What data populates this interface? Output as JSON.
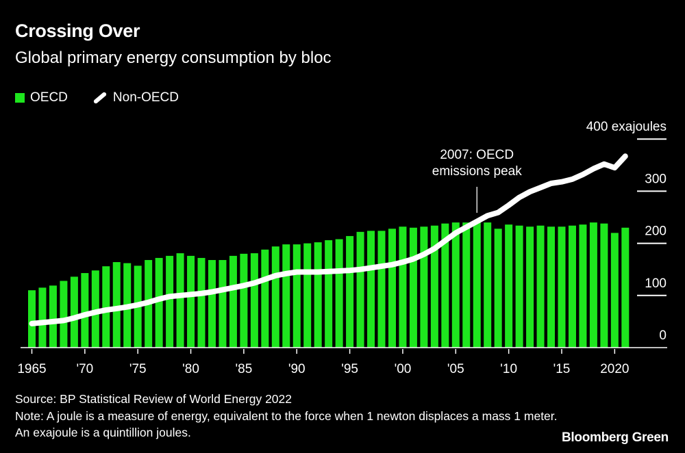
{
  "header": {
    "title": "Crossing Over",
    "subtitle": "Global primary energy consumption by bloc"
  },
  "legend": [
    {
      "label": "OECD",
      "type": "bar"
    },
    {
      "label": "Non-OECD",
      "type": "line"
    }
  ],
  "colors": {
    "oecd": "#1ee61e",
    "non_oecd": "#ffffff",
    "background": "#000000"
  },
  "chart_data": {
    "type": "bar",
    "title": "Crossing Over",
    "subtitle": "Global primary energy consumption by bloc",
    "unit_label": "400 exajoules",
    "x": [
      1965,
      1966,
      1967,
      1968,
      1969,
      1970,
      1971,
      1972,
      1973,
      1974,
      1975,
      1976,
      1977,
      1978,
      1979,
      1980,
      1981,
      1982,
      1983,
      1984,
      1985,
      1986,
      1987,
      1988,
      1989,
      1990,
      1991,
      1992,
      1993,
      1994,
      1995,
      1996,
      1997,
      1998,
      1999,
      2000,
      2001,
      2002,
      2003,
      2004,
      2005,
      2006,
      2007,
      2008,
      2009,
      2010,
      2011,
      2012,
      2013,
      2014,
      2015,
      2016,
      2017,
      2018,
      2019,
      2020,
      2021
    ],
    "x_tick_labels": [
      {
        "year": 1965,
        "label": "1965"
      },
      {
        "year": 1970,
        "label": "'70"
      },
      {
        "year": 1975,
        "label": "'75"
      },
      {
        "year": 1980,
        "label": "'80"
      },
      {
        "year": 1985,
        "label": "'85"
      },
      {
        "year": 1990,
        "label": "'90"
      },
      {
        "year": 1995,
        "label": "'95"
      },
      {
        "year": 2000,
        "label": "'00"
      },
      {
        "year": 2005,
        "label": "'05"
      },
      {
        "year": 2010,
        "label": "'10"
      },
      {
        "year": 2015,
        "label": "'15"
      },
      {
        "year": 2020,
        "label": "2020"
      }
    ],
    "y_ticks": [
      {
        "value": 0,
        "label": "0"
      },
      {
        "value": 100,
        "label": "100"
      },
      {
        "value": 200,
        "label": "200"
      },
      {
        "value": 300,
        "label": "300"
      },
      {
        "value": 400,
        "label": "400 exajoules"
      }
    ],
    "ylim": [
      0,
      400
    ],
    "y_axis_side": "right",
    "series": [
      {
        "name": "OECD",
        "type": "bar",
        "values": [
          110,
          115,
          119,
          128,
          136,
          143,
          148,
          156,
          164,
          162,
          157,
          168,
          172,
          176,
          181,
          176,
          172,
          168,
          168,
          176,
          180,
          181,
          188,
          194,
          198,
          198,
          200,
          202,
          206,
          208,
          214,
          222,
          224,
          224,
          228,
          232,
          230,
          232,
          234,
          238,
          240,
          240,
          241,
          240,
          228,
          236,
          234,
          232,
          234,
          232,
          232,
          234,
          236,
          240,
          238,
          220,
          230
        ]
      },
      {
        "name": "Non-OECD",
        "type": "line",
        "values": [
          46,
          48,
          50,
          52,
          57,
          63,
          68,
          72,
          75,
          78,
          82,
          87,
          93,
          98,
          100,
          102,
          104,
          107,
          111,
          115,
          119,
          124,
          131,
          138,
          142,
          145,
          145,
          145,
          146,
          147,
          148,
          150,
          153,
          156,
          159,
          164,
          170,
          179,
          190,
          205,
          220,
          231,
          242,
          253,
          259,
          273,
          288,
          299,
          307,
          315,
          318,
          323,
          332,
          343,
          352,
          345,
          367
        ]
      }
    ],
    "annotations": [
      {
        "year": 2007,
        "lines": [
          "2007: OECD",
          "emissions peak"
        ]
      }
    ]
  },
  "footer": {
    "source": "Source: BP Statistical Review of World Energy 2022",
    "note1": "Note: A joule is a measure of energy, equivalent to the force when 1 newton displaces a mass 1 meter.",
    "note2": "An exajoule is a quintillion joules."
  },
  "brand": "Bloomberg Green"
}
